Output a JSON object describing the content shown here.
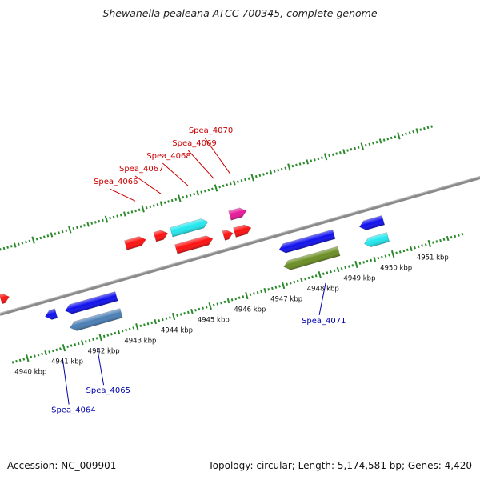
{
  "title": "Shewanella pealeana ATCC 700345, complete genome",
  "footer": {
    "accession": "Accession: NC_009901",
    "stats": "Topology: circular; Length: 5,174,581 bp; Genes: 4,420"
  },
  "colors": {
    "backbone": "#8a8a8a",
    "tick": "#2a8a2a",
    "label_upper": "#cc0000",
    "label_lower": "#0000aa"
  },
  "scale": {
    "unit": "kbp",
    "labels": [
      "4940 kbp",
      "4941 kbp",
      "4942 kbp",
      "4943 kbp",
      "4944 kbp",
      "4945 kbp",
      "4946 kbp",
      "4947 kbp",
      "4948 kbp",
      "4949 kbp",
      "4950 kbp",
      "4951 kbp"
    ]
  },
  "genes": [
    {
      "id": "g1",
      "label": "",
      "strand": "+",
      "start": 4939.75,
      "end": 4939.98,
      "color": "#ff1010",
      "lane": 0.55
    },
    {
      "id": "g2",
      "label": "",
      "strand": "-",
      "start": 4940.75,
      "end": 4941.05,
      "color": "#1010ee",
      "lane": 0.55
    },
    {
      "id": "g3",
      "label": "",
      "strand": "-",
      "start": 4941.3,
      "end": 4942.7,
      "color": "#1010ee",
      "lane": 0.55
    },
    {
      "id": "g4",
      "label": "",
      "strand": "-",
      "start": 4941.3,
      "end": 4942.7,
      "color": "#4a7fb5",
      "lane": 1.55
    },
    {
      "id": "g5",
      "label": "",
      "strand": "+",
      "start": 4943.3,
      "end": 4943.85,
      "color": "#ff1010",
      "lane": 1.55
    },
    {
      "id": "g6",
      "label": "",
      "strand": "+",
      "start": 4944.1,
      "end": 4944.45,
      "color": "#ff1010",
      "lane": 1.55
    },
    {
      "id": "g7",
      "label": "",
      "strand": "+",
      "start": 4944.55,
      "end": 4945.55,
      "color": "#ff1010",
      "lane": 0.55
    },
    {
      "id": "g8",
      "label": "",
      "strand": "+",
      "start": 4944.55,
      "end": 4945.55,
      "color": "#22e8ee",
      "lane": 1.55
    },
    {
      "id": "g9",
      "label": "",
      "strand": "+",
      "start": 4945.85,
      "end": 4946.1,
      "color": "#ff1010",
      "lane": 0.55
    },
    {
      "id": "g10",
      "label": "",
      "strand": "+",
      "start": 4946.15,
      "end": 4946.6,
      "color": "#ff1010",
      "lane": 0.55
    },
    {
      "id": "g11",
      "label": "",
      "strand": "+",
      "start": 4946.15,
      "end": 4946.6,
      "color": "#e8189a",
      "lane": 1.55
    },
    {
      "id": "g12",
      "label": "",
      "strand": "-",
      "start": 4947.15,
      "end": 4948.65,
      "color": "#1010ee",
      "lane": 0.55
    },
    {
      "id": "g13",
      "label": "",
      "strand": "-",
      "start": 4947.15,
      "end": 4948.65,
      "color": "#6b8e23",
      "lane": 1.55
    },
    {
      "id": "g14",
      "label": "",
      "strand": "-",
      "start": 4949.35,
      "end": 4950.0,
      "color": "#1010ee",
      "lane": 0.55
    },
    {
      "id": "g15",
      "label": "",
      "strand": "-",
      "start": 4949.35,
      "end": 4950.0,
      "color": "#22e8ee",
      "lane": 1.55
    }
  ],
  "gene_labels_upper": [
    {
      "text": "Spea_4066",
      "pos": 4943.85
    },
    {
      "text": "Spea_4067",
      "pos": 4944.55
    },
    {
      "text": "Spea_4068",
      "pos": 4945.3
    },
    {
      "text": "Spea_4069",
      "pos": 4946.0
    },
    {
      "text": "Spea_4070",
      "pos": 4946.45
    }
  ],
  "gene_labels_lower": [
    {
      "text": "Spea_4064",
      "pos": 4940.9
    },
    {
      "text": "Spea_4065",
      "pos": 4941.85
    },
    {
      "text": "Spea_4071",
      "pos": 4948.1
    }
  ]
}
